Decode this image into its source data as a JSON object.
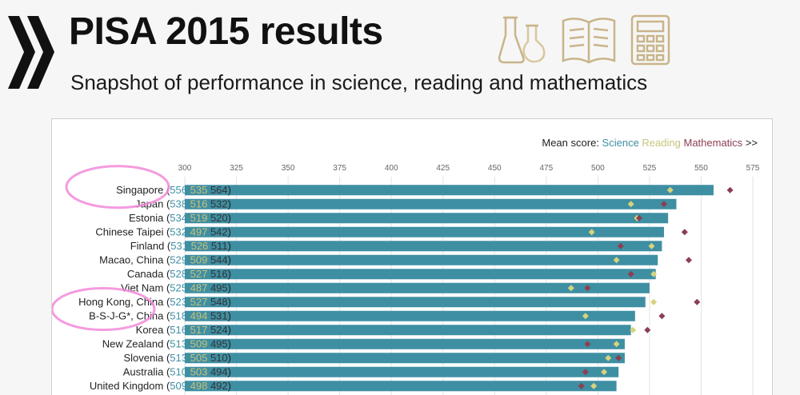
{
  "header": {
    "title": "PISA 2015 results",
    "subtitle": "Snapshot of performance in science, reading and mathematics",
    "icons": [
      "oecd-chevron-logo",
      "flask-icon",
      "book-icon",
      "calculator-icon"
    ]
  },
  "legend": {
    "prefix": "Mean score:",
    "science": "Science",
    "reading": "Reading",
    "mathematics": "Mathematics",
    "more": ">>"
  },
  "colors": {
    "science_bar": "#3f8fa3",
    "reading_marker": "#d6d37f",
    "mathematics_marker": "#8c3e52",
    "highlight_circle": "#f28ad9"
  },
  "chart_data": {
    "type": "bar",
    "x_ticks": [
      300,
      325,
      350,
      375,
      400,
      425,
      450,
      475,
      500,
      525,
      550,
      575
    ],
    "xlim": [
      300,
      575
    ],
    "categories": [
      "Singapore",
      "Japan",
      "Estonia",
      "Chinese Taipei",
      "Finland",
      "Macao, China",
      "Canada",
      "Viet Nam",
      "Hong Kong, China",
      "B-S-J-G*, China",
      "Korea",
      "New Zealand",
      "Slovenia",
      "Australia",
      "United Kingdom"
    ],
    "series": [
      {
        "name": "Science",
        "values": [
          556,
          538,
          534,
          532,
          531,
          529,
          528,
          525,
          523,
          518,
          516,
          513,
          513,
          510,
          509
        ]
      },
      {
        "name": "Reading",
        "values": [
          535,
          516,
          519,
          497,
          526,
          509,
          527,
          487,
          527,
          494,
          517,
          509,
          505,
          503,
          498
        ]
      },
      {
        "name": "Mathematics",
        "values": [
          564,
          532,
          520,
          542,
          511,
          544,
          516,
          495,
          548,
          531,
          524,
          495,
          510,
          494,
          492
        ]
      }
    ],
    "highlighted": [
      "Singapore",
      "Hong Kong, China",
      "B-S-J-G*, China"
    ]
  }
}
